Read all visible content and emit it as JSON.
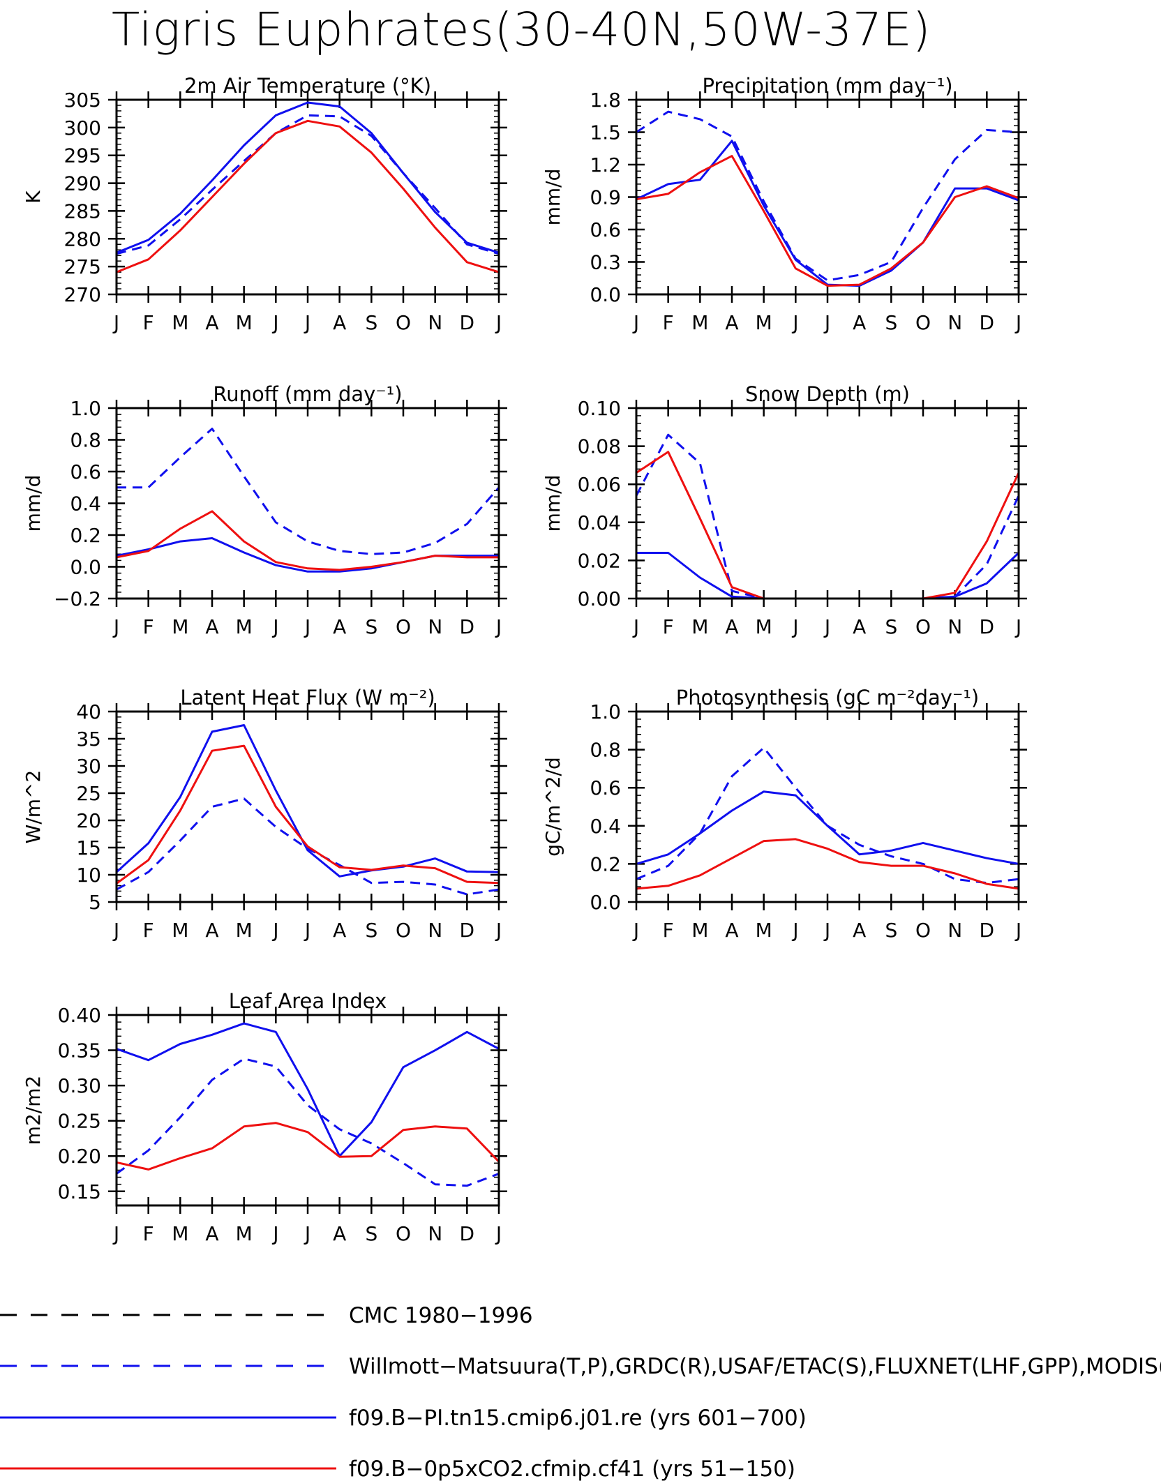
{
  "page": {
    "title": "Tigris Euphrates(30-40N,50W-37E)"
  },
  "chart_data": [
    {
      "type": "line",
      "title": "2m Air Temperature (°K)",
      "ylabel": "K",
      "categories": [
        "J",
        "F",
        "M",
        "A",
        "M",
        "J",
        "J",
        "A",
        "S",
        "O",
        "N",
        "D",
        "J"
      ],
      "ylim": [
        270,
        305
      ],
      "yticks": [
        270,
        275,
        280,
        285,
        290,
        295,
        300,
        305
      ],
      "ytick_labels": [
        "270",
        "275",
        "280",
        "285",
        "290",
        "295",
        "300",
        "305"
      ],
      "series": [
        {
          "style": "dashed-blue",
          "values": [
            277.3,
            278.8,
            283.5,
            288.8,
            294.0,
            299.0,
            302.2,
            302.0,
            298.5,
            291.8,
            285.5,
            279.0,
            277.3
          ]
        },
        {
          "style": "solid-blue",
          "values": [
            277.5,
            279.8,
            284.5,
            290.5,
            296.8,
            302.2,
            304.5,
            303.8,
            299.0,
            291.8,
            284.8,
            279.3,
            277.5
          ]
        },
        {
          "style": "solid-red",
          "values": [
            274.0,
            276.3,
            281.5,
            287.5,
            293.5,
            299.0,
            301.2,
            300.2,
            295.5,
            289.0,
            282.0,
            275.8,
            274.0
          ]
        }
      ]
    },
    {
      "type": "line",
      "title": "Precipitation (mm day⁻¹)",
      "ylabel": "mm/d",
      "categories": [
        "J",
        "F",
        "M",
        "A",
        "M",
        "J",
        "J",
        "A",
        "S",
        "O",
        "N",
        "D",
        "J"
      ],
      "ylim": [
        0,
        1.8
      ],
      "yticks": [
        0,
        0.3,
        0.6,
        0.9,
        1.2,
        1.5,
        1.8
      ],
      "ytick_labels": [
        "0.0",
        "0.3",
        "0.6",
        "0.9",
        "1.2",
        "1.5",
        "1.8"
      ],
      "series": [
        {
          "style": "dashed-blue",
          "values": [
            1.5,
            1.69,
            1.62,
            1.46,
            0.86,
            0.33,
            0.13,
            0.18,
            0.3,
            0.8,
            1.25,
            1.52,
            1.5
          ]
        },
        {
          "style": "solid-blue",
          "values": [
            0.88,
            1.02,
            1.06,
            1.42,
            0.82,
            0.32,
            0.09,
            0.08,
            0.22,
            0.48,
            0.98,
            0.98,
            0.87
          ]
        },
        {
          "style": "solid-red",
          "values": [
            0.88,
            0.93,
            1.13,
            1.28,
            0.77,
            0.24,
            0.08,
            0.09,
            0.24,
            0.48,
            0.9,
            1.0,
            0.89
          ]
        }
      ]
    },
    {
      "type": "line",
      "title": "Runoff (mm day⁻¹)",
      "ylabel": "mm/d",
      "categories": [
        "J",
        "F",
        "M",
        "A",
        "M",
        "J",
        "J",
        "A",
        "S",
        "O",
        "N",
        "D",
        "J"
      ],
      "ylim": [
        -0.2,
        1.0
      ],
      "yticks": [
        -0.2,
        0,
        0.2,
        0.4,
        0.6,
        0.8,
        1.0
      ],
      "ytick_labels": [
        "−0.2",
        "0.0",
        "0.2",
        "0.4",
        "0.6",
        "0.8",
        "1.0"
      ],
      "series": [
        {
          "style": "dashed-blue",
          "values": [
            0.5,
            0.5,
            0.69,
            0.87,
            0.57,
            0.28,
            0.16,
            0.1,
            0.08,
            0.09,
            0.15,
            0.27,
            0.5
          ]
        },
        {
          "style": "solid-blue",
          "values": [
            0.07,
            0.11,
            0.16,
            0.18,
            0.09,
            0.01,
            -0.03,
            -0.03,
            -0.01,
            0.03,
            0.07,
            0.07,
            0.07
          ]
        },
        {
          "style": "solid-red",
          "values": [
            0.06,
            0.1,
            0.24,
            0.35,
            0.16,
            0.03,
            -0.01,
            -0.02,
            0.0,
            0.03,
            0.07,
            0.06,
            0.06
          ]
        }
      ]
    },
    {
      "type": "line",
      "title": "Snow Depth (m)",
      "ylabel": "mm/d",
      "categories": [
        "J",
        "F",
        "M",
        "A",
        "M",
        "J",
        "J",
        "A",
        "S",
        "O",
        "N",
        "D",
        "J"
      ],
      "ylim": [
        0,
        0.1
      ],
      "yticks": [
        0,
        0.02,
        0.04,
        0.06,
        0.08,
        0.1
      ],
      "ytick_labels": [
        "0.00",
        "0.02",
        "0.04",
        "0.06",
        "0.08",
        "0.10"
      ],
      "series": [
        {
          "style": "dashed-black",
          "values": [
            0,
            0,
            0,
            0,
            0,
            0,
            0,
            0,
            0,
            0,
            0,
            0,
            0
          ]
        },
        {
          "style": "dashed-blue",
          "values": [
            0.054,
            0.086,
            0.071,
            0.004,
            0,
            0,
            0,
            0,
            0,
            0,
            0.001,
            0.018,
            0.054
          ]
        },
        {
          "style": "solid-blue",
          "values": [
            0.024,
            0.024,
            0.011,
            0.001,
            0,
            0,
            0,
            0,
            0,
            0,
            0.001,
            0.008,
            0.024
          ]
        },
        {
          "style": "solid-red",
          "values": [
            0.066,
            0.077,
            0.042,
            0.006,
            0,
            0,
            0,
            0,
            0,
            0,
            0.003,
            0.03,
            0.066
          ]
        }
      ]
    },
    {
      "type": "line",
      "title": "Latent Heat Flux (W m⁻²)",
      "ylabel": "W/m^2",
      "categories": [
        "J",
        "F",
        "M",
        "A",
        "M",
        "J",
        "J",
        "A",
        "S",
        "O",
        "N",
        "D",
        "J"
      ],
      "ylim": [
        5,
        40
      ],
      "yticks": [
        5,
        10,
        15,
        20,
        25,
        30,
        35,
        40
      ],
      "ytick_labels": [
        "5",
        "10",
        "15",
        "20",
        "25",
        "30",
        "35",
        "40"
      ],
      "series": [
        {
          "style": "dashed-blue",
          "values": [
            7.3,
            10.5,
            16.3,
            22.5,
            24.0,
            18.8,
            14.8,
            11.8,
            8.5,
            8.7,
            8.2,
            6.4,
            7.3
          ]
        },
        {
          "style": "solid-blue",
          "values": [
            10.5,
            15.8,
            24.3,
            36.3,
            37.5,
            25.5,
            14.5,
            9.7,
            10.8,
            11.5,
            13.0,
            10.6,
            10.5
          ]
        },
        {
          "style": "solid-red",
          "values": [
            8.4,
            12.7,
            21.8,
            32.8,
            33.7,
            22.5,
            15.2,
            11.4,
            10.9,
            11.7,
            11.2,
            8.7,
            8.5
          ]
        }
      ]
    },
    {
      "type": "line",
      "title": "Photosynthesis (gC m⁻²day⁻¹)",
      "ylabel": "gC/m^2/d",
      "categories": [
        "J",
        "F",
        "M",
        "A",
        "M",
        "J",
        "J",
        "A",
        "S",
        "O",
        "N",
        "D",
        "J"
      ],
      "ylim": [
        0,
        1.0
      ],
      "yticks": [
        0,
        0.2,
        0.4,
        0.6,
        0.8,
        1.0
      ],
      "ytick_labels": [
        "0.0",
        "0.2",
        "0.4",
        "0.6",
        "0.8",
        "1.0"
      ],
      "series": [
        {
          "style": "dashed-blue",
          "values": [
            0.12,
            0.19,
            0.36,
            0.66,
            0.81,
            0.6,
            0.4,
            0.3,
            0.24,
            0.2,
            0.12,
            0.1,
            0.12
          ]
        },
        {
          "style": "solid-blue",
          "values": [
            0.2,
            0.25,
            0.36,
            0.48,
            0.58,
            0.56,
            0.4,
            0.25,
            0.27,
            0.31,
            0.27,
            0.23,
            0.2
          ]
        },
        {
          "style": "solid-red",
          "values": [
            0.07,
            0.085,
            0.14,
            0.23,
            0.32,
            0.33,
            0.28,
            0.21,
            0.19,
            0.19,
            0.15,
            0.095,
            0.07
          ]
        }
      ]
    },
    {
      "type": "line",
      "title": "Leaf Area Index",
      "ylabel": "m2/m2",
      "categories": [
        "J",
        "F",
        "M",
        "A",
        "M",
        "J",
        "J",
        "A",
        "S",
        "O",
        "N",
        "D",
        "J"
      ],
      "ylim": [
        0.13,
        0.4
      ],
      "yticks": [
        0.15,
        0.2,
        0.25,
        0.3,
        0.35,
        0.4
      ],
      "ytick_labels": [
        "0.15",
        "0.20",
        "0.25",
        "0.30",
        "0.35",
        "0.40"
      ],
      "series": [
        {
          "style": "dashed-blue",
          "values": [
            0.175,
            0.208,
            0.255,
            0.308,
            0.338,
            0.327,
            0.272,
            0.238,
            0.218,
            0.19,
            0.16,
            0.158,
            0.175
          ]
        },
        {
          "style": "solid-blue",
          "values": [
            0.352,
            0.336,
            0.359,
            0.372,
            0.388,
            0.376,
            0.295,
            0.2,
            0.248,
            0.326,
            0.35,
            0.376,
            0.352
          ]
        },
        {
          "style": "solid-red",
          "values": [
            0.191,
            0.181,
            0.197,
            0.211,
            0.242,
            0.247,
            0.234,
            0.199,
            0.2,
            0.237,
            0.242,
            0.239,
            0.192
          ]
        }
      ]
    }
  ],
  "legend": {
    "entries": [
      {
        "style": "dashed-black",
        "label": "CMC 1980−1996"
      },
      {
        "style": "dashed-blue",
        "label": "Willmott−Matsuura(T,P),GRDC(R),USAF/ETAC(S),FLUXNET(LHF,GPP),MODIS(LAI)"
      },
      {
        "style": "solid-blue",
        "label": "f09.B−PI.tn15.cmip6.j01.re (yrs 601−700)"
      },
      {
        "style": "solid-red",
        "label": "f09.B−0p5xCO2.cfmip.cf41 (yrs 51−150)"
      }
    ]
  },
  "colors": {
    "blue": "#1010ee",
    "red": "#ee1010",
    "black": "#000000"
  }
}
